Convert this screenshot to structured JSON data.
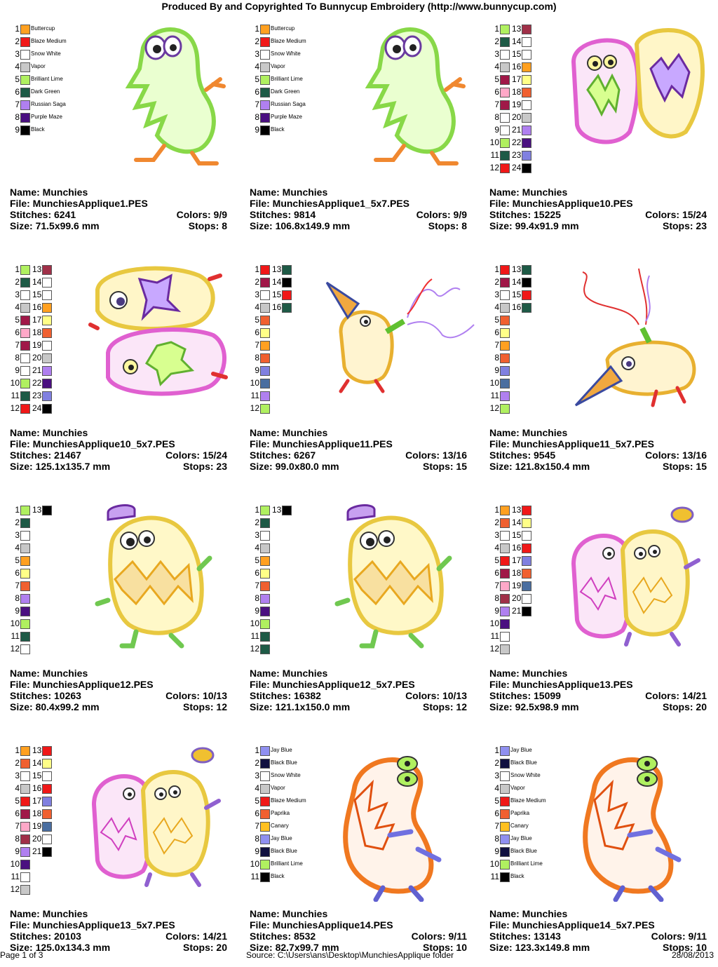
{
  "header": "Produced By and Copyrighted To Bunnycup Embroidery (http://www.bunnycup.com)",
  "footer": {
    "page": "Page 1 of 3",
    "source": "Source:  C:\\Users\\ans\\Desktop\\MunchiesApplique folder",
    "date": "28/08/2013"
  },
  "labels": {
    "name": "Name: ",
    "file": "File: ",
    "stitches": "Stitches: ",
    "size": "Size: ",
    "colors": "Colors: ",
    "stops": "Stops: "
  },
  "designs": [
    {
      "name": "Munchies",
      "file": "MunchiesApplique1.PES",
      "stitches": "6241",
      "colors": "9/9",
      "size": "71.5x99.6 mm",
      "stops": "8",
      "art": "ghost-green",
      "swatches": [
        {
          "n": "1",
          "c": "#FFA020",
          "label": "Buttercup"
        },
        {
          "n": "2",
          "c": "#F01818",
          "label": "Blaze Medium"
        },
        {
          "n": "3",
          "c": "#FFFFFF",
          "label": "Snow White"
        },
        {
          "n": "4",
          "c": "#C8C8C8",
          "label": "Vapor"
        },
        {
          "n": "5",
          "c": "#B0F060",
          "label": "Brilliant Lime"
        },
        {
          "n": "6",
          "c": "#1E5A46",
          "label": "Dark Green"
        },
        {
          "n": "7",
          "c": "#B080F0",
          "label": "Russian Saga"
        },
        {
          "n": "8",
          "c": "#4A1080",
          "label": "Purple Maze"
        },
        {
          "n": "9",
          "c": "#000000",
          "label": "Black"
        }
      ]
    },
    {
      "name": "Munchies",
      "file": "MunchiesApplique1_5x7.PES",
      "stitches": "9814",
      "colors": "9/9",
      "size": "106.8x149.9 mm",
      "stops": "8",
      "art": "ghost-green",
      "swatches": [
        {
          "n": "1",
          "c": "#FFA020",
          "label": "Buttercup"
        },
        {
          "n": "2",
          "c": "#F01818",
          "label": "Blaze Medium"
        },
        {
          "n": "3",
          "c": "#FFFFFF",
          "label": "Snow White"
        },
        {
          "n": "4",
          "c": "#C8C8C8",
          "label": "Vapor"
        },
        {
          "n": "5",
          "c": "#B0F060",
          "label": "Brilliant Lime"
        },
        {
          "n": "6",
          "c": "#1E5A46",
          "label": "Dark Green"
        },
        {
          "n": "7",
          "c": "#B080F0",
          "label": "Russian Saga"
        },
        {
          "n": "8",
          "c": "#4A1080",
          "label": "Purple Maze"
        },
        {
          "n": "9",
          "c": "#000000",
          "label": "Black"
        }
      ]
    },
    {
      "name": "Munchies",
      "file": "MunchiesApplique10.PES",
      "stitches": "15225",
      "colors": "15/24",
      "size": "99.4x91.9 mm",
      "stops": "23",
      "art": "pair-pink-yellow",
      "swatches": [
        {
          "n": "1",
          "c": "#B0F060"
        },
        {
          "n": "2",
          "c": "#1E5A46"
        },
        {
          "n": "3",
          "c": "#FFFFFF"
        },
        {
          "n": "4",
          "c": "#C8C8C8"
        },
        {
          "n": "5",
          "c": "#A01848"
        },
        {
          "n": "6",
          "c": "#FFA8C8"
        },
        {
          "n": "7",
          "c": "#A01848"
        },
        {
          "n": "8",
          "c": "#FFFFFF"
        },
        {
          "n": "9",
          "c": "#FFFFFF"
        },
        {
          "n": "10",
          "c": "#B0F060"
        },
        {
          "n": "11",
          "c": "#1E5A46"
        },
        {
          "n": "12",
          "c": "#F01818"
        },
        {
          "n": "13",
          "c": "#A03048"
        },
        {
          "n": "14",
          "c": "#FFFFFF"
        },
        {
          "n": "15",
          "c": "#FFFFFF"
        },
        {
          "n": "16",
          "c": "#FFA020"
        },
        {
          "n": "17",
          "c": "#FFFF88"
        },
        {
          "n": "18",
          "c": "#F06030"
        },
        {
          "n": "19",
          "c": "#FFFFFF"
        },
        {
          "n": "20",
          "c": "#C8C8C8"
        },
        {
          "n": "21",
          "c": "#B080F0"
        },
        {
          "n": "22",
          "c": "#4A1080"
        },
        {
          "n": "23",
          "c": "#8080E0"
        },
        {
          "n": "24",
          "c": "#000000"
        }
      ]
    },
    {
      "name": "Munchies",
      "file": "MunchiesApplique10_5x7.PES",
      "stitches": "21467",
      "colors": "15/24",
      "size": "125.1x135.7 mm",
      "stops": "23",
      "art": "pair-stacked",
      "swatches": [
        {
          "n": "1",
          "c": "#B0F060"
        },
        {
          "n": "2",
          "c": "#1E5A46"
        },
        {
          "n": "3",
          "c": "#FFFFFF"
        },
        {
          "n": "4",
          "c": "#C8C8C8"
        },
        {
          "n": "5",
          "c": "#A01848"
        },
        {
          "n": "6",
          "c": "#FFA8C8"
        },
        {
          "n": "7",
          "c": "#A01848"
        },
        {
          "n": "8",
          "c": "#FFFFFF"
        },
        {
          "n": "9",
          "c": "#FFFFFF"
        },
        {
          "n": "10",
          "c": "#B0F060"
        },
        {
          "n": "11",
          "c": "#1E5A46"
        },
        {
          "n": "12",
          "c": "#F01818"
        },
        {
          "n": "13",
          "c": "#A03048"
        },
        {
          "n": "14",
          "c": "#FFFFFF"
        },
        {
          "n": "15",
          "c": "#FFFFFF"
        },
        {
          "n": "16",
          "c": "#FFA020"
        },
        {
          "n": "17",
          "c": "#FFFF88"
        },
        {
          "n": "18",
          "c": "#F06030"
        },
        {
          "n": "19",
          "c": "#FFFFFF"
        },
        {
          "n": "20",
          "c": "#C8C8C8"
        },
        {
          "n": "21",
          "c": "#B080F0"
        },
        {
          "n": "22",
          "c": "#4A1080"
        },
        {
          "n": "23",
          "c": "#8080E0"
        },
        {
          "n": "24",
          "c": "#000000"
        }
      ]
    },
    {
      "name": "Munchies",
      "file": "MunchiesApplique11.PES",
      "stitches": "6267",
      "colors": "13/16",
      "size": "99.0x80.0 mm",
      "stops": "15",
      "art": "party",
      "swatches": [
        {
          "n": "1",
          "c": "#F01818"
        },
        {
          "n": "2",
          "c": "#A01848"
        },
        {
          "n": "3",
          "c": "#FFFFFF"
        },
        {
          "n": "4",
          "c": "#C8C8C8"
        },
        {
          "n": "5",
          "c": "#F06030"
        },
        {
          "n": "6",
          "c": "#FFFF88"
        },
        {
          "n": "7",
          "c": "#FFA020"
        },
        {
          "n": "8",
          "c": "#F06030"
        },
        {
          "n": "9",
          "c": "#8080E0"
        },
        {
          "n": "10",
          "c": "#4A6EA0"
        },
        {
          "n": "11",
          "c": "#B080F0"
        },
        {
          "n": "12",
          "c": "#B0F060"
        },
        {
          "n": "13",
          "c": "#1E5A46"
        },
        {
          "n": "14",
          "c": "#000000"
        },
        {
          "n": "15",
          "c": "#F01818"
        },
        {
          "n": "16",
          "c": "#1E5A46"
        }
      ]
    },
    {
      "name": "Munchies",
      "file": "MunchiesApplique11_5x7.PES",
      "stitches": "9545",
      "colors": "13/16",
      "size": "121.8x150.4 mm",
      "stops": "15",
      "art": "party-lying",
      "swatches": [
        {
          "n": "1",
          "c": "#F01818"
        },
        {
          "n": "2",
          "c": "#A01848"
        },
        {
          "n": "3",
          "c": "#FFFFFF"
        },
        {
          "n": "4",
          "c": "#C8C8C8"
        },
        {
          "n": "5",
          "c": "#F06030"
        },
        {
          "n": "6",
          "c": "#FFFF88"
        },
        {
          "n": "7",
          "c": "#FFA020"
        },
        {
          "n": "8",
          "c": "#F06030"
        },
        {
          "n": "9",
          "c": "#8080E0"
        },
        {
          "n": "10",
          "c": "#4A6EA0"
        },
        {
          "n": "11",
          "c": "#B080F0"
        },
        {
          "n": "12",
          "c": "#B0F060"
        },
        {
          "n": "13",
          "c": "#1E5A46"
        },
        {
          "n": "14",
          "c": "#000000"
        },
        {
          "n": "15",
          "c": "#F01818"
        },
        {
          "n": "16",
          "c": "#1E5A46"
        }
      ]
    },
    {
      "name": "Munchies",
      "file": "MunchiesApplique12.PES",
      "stitches": "10263",
      "colors": "10/13",
      "size": "80.4x99.2 mm",
      "stops": "12",
      "art": "yellow-hat",
      "swatches": [
        {
          "n": "1",
          "c": "#B0F060"
        },
        {
          "n": "2",
          "c": "#1E5A46"
        },
        {
          "n": "3",
          "c": "#FFFFFF"
        },
        {
          "n": "4",
          "c": "#C8C8C8"
        },
        {
          "n": "5",
          "c": "#FFA020"
        },
        {
          "n": "6",
          "c": "#FFFF88"
        },
        {
          "n": "7",
          "c": "#F06030"
        },
        {
          "n": "8",
          "c": "#B080F0"
        },
        {
          "n": "9",
          "c": "#4A1080"
        },
        {
          "n": "10",
          "c": "#B0F060"
        },
        {
          "n": "11",
          "c": "#1E5A46"
        },
        {
          "n": "12",
          "c": "#FFFFFF"
        },
        {
          "n": "13",
          "c": "#000000"
        }
      ]
    },
    {
      "name": "Munchies",
      "file": "MunchiesApplique12_5x7.PES",
      "stitches": "16382",
      "colors": "10/13",
      "size": "121.1x150.0 mm",
      "stops": "12",
      "art": "yellow-hat",
      "swatches": [
        {
          "n": "1",
          "c": "#B0F060"
        },
        {
          "n": "2",
          "c": "#1E5A46"
        },
        {
          "n": "3",
          "c": "#FFFFFF"
        },
        {
          "n": "4",
          "c": "#C8C8C8"
        },
        {
          "n": "5",
          "c": "#FFA020"
        },
        {
          "n": "6",
          "c": "#FFFF88"
        },
        {
          "n": "7",
          "c": "#F06030"
        },
        {
          "n": "8",
          "c": "#B080F0"
        },
        {
          "n": "9",
          "c": "#4A1080"
        },
        {
          "n": "10",
          "c": "#B0F060"
        },
        {
          "n": "11",
          "c": "#1E5A46"
        },
        {
          "n": "12",
          "c": "#1E5A46"
        },
        {
          "n": "13",
          "c": "#000000"
        }
      ]
    },
    {
      "name": "Munchies",
      "file": "MunchiesApplique13.PES",
      "stitches": "15099",
      "colors": "14/21",
      "size": "92.5x98.9 mm",
      "stops": "20",
      "art": "hug",
      "swatches": [
        {
          "n": "1",
          "c": "#FFA020"
        },
        {
          "n": "2",
          "c": "#F06030"
        },
        {
          "n": "3",
          "c": "#FFFFFF"
        },
        {
          "n": "4",
          "c": "#C8C8C8"
        },
        {
          "n": "5",
          "c": "#F01818"
        },
        {
          "n": "6",
          "c": "#A01848"
        },
        {
          "n": "7",
          "c": "#FFA8C8"
        },
        {
          "n": "8",
          "c": "#A03048"
        },
        {
          "n": "9",
          "c": "#B080F0"
        },
        {
          "n": "10",
          "c": "#4A1080"
        },
        {
          "n": "11",
          "c": "#FFFFFF"
        },
        {
          "n": "12",
          "c": "#C8C8C8"
        },
        {
          "n": "13",
          "c": "#F01818"
        },
        {
          "n": "14",
          "c": "#FFFF88"
        },
        {
          "n": "15",
          "c": "#FFFFFF"
        },
        {
          "n": "16",
          "c": "#F01818"
        },
        {
          "n": "17",
          "c": "#8080E0"
        },
        {
          "n": "18",
          "c": "#F06030"
        },
        {
          "n": "19",
          "c": "#4A6EA0"
        },
        {
          "n": "20",
          "c": "#FFFFFF"
        },
        {
          "n": "21",
          "c": "#000000"
        }
      ]
    },
    {
      "name": "Munchies",
      "file": "MunchiesApplique13_5x7.PES",
      "stitches": "20103",
      "colors": "14/21",
      "size": "125.0x134.3 mm",
      "stops": "20",
      "art": "hug",
      "swatches": [
        {
          "n": "1",
          "c": "#FFA020"
        },
        {
          "n": "2",
          "c": "#F06030"
        },
        {
          "n": "3",
          "c": "#FFFFFF"
        },
        {
          "n": "4",
          "c": "#C8C8C8"
        },
        {
          "n": "5",
          "c": "#F01818"
        },
        {
          "n": "6",
          "c": "#A01848"
        },
        {
          "n": "7",
          "c": "#FFA8C8"
        },
        {
          "n": "8",
          "c": "#A03048"
        },
        {
          "n": "9",
          "c": "#B080F0"
        },
        {
          "n": "10",
          "c": "#4A1080"
        },
        {
          "n": "11",
          "c": "#FFFFFF"
        },
        {
          "n": "12",
          "c": "#C8C8C8"
        },
        {
          "n": "13",
          "c": "#F01818"
        },
        {
          "n": "14",
          "c": "#FFFF88"
        },
        {
          "n": "15",
          "c": "#FFFFFF"
        },
        {
          "n": "16",
          "c": "#F01818"
        },
        {
          "n": "17",
          "c": "#8080E0"
        },
        {
          "n": "18",
          "c": "#F06030"
        },
        {
          "n": "19",
          "c": "#4A6EA0"
        },
        {
          "n": "20",
          "c": "#FFFFFF"
        },
        {
          "n": "21",
          "c": "#000000"
        }
      ]
    },
    {
      "name": "Munchies",
      "file": "MunchiesApplique14.PES",
      "stitches": "8532",
      "colors": "9/11",
      "size": "82.7x99.7 mm",
      "stops": "10",
      "art": "orange",
      "swatches": [
        {
          "n": "1",
          "c": "#9090F0",
          "label": "Jay Blue"
        },
        {
          "n": "2",
          "c": "#101040",
          "label": "Black Blue"
        },
        {
          "n": "3",
          "c": "#FFFFFF",
          "label": "Snow White"
        },
        {
          "n": "4",
          "c": "#C8C8C8",
          "label": "Vapor"
        },
        {
          "n": "5",
          "c": "#F01818",
          "label": "Blaze Medium"
        },
        {
          "n": "6",
          "c": "#F06030",
          "label": "Paprika"
        },
        {
          "n": "7",
          "c": "#FFC020",
          "label": "Canary"
        },
        {
          "n": "8",
          "c": "#9090F0",
          "label": "Jay Blue"
        },
        {
          "n": "9",
          "c": "#101040",
          "label": "Black Blue"
        },
        {
          "n": "10",
          "c": "#B0F060",
          "label": "Brilliant Lime"
        },
        {
          "n": "11",
          "c": "#000000",
          "label": "Black"
        }
      ]
    },
    {
      "name": "Munchies",
      "file": "MunchiesApplique14_5x7.PES",
      "stitches": "13143",
      "colors": "9/11",
      "size": "123.3x149.8 mm",
      "stops": "10",
      "art": "orange",
      "swatches": [
        {
          "n": "1",
          "c": "#9090F0",
          "label": "Jay Blue"
        },
        {
          "n": "2",
          "c": "#101040",
          "label": "Black Blue"
        },
        {
          "n": "3",
          "c": "#FFFFFF",
          "label": "Snow White"
        },
        {
          "n": "4",
          "c": "#C8C8C8",
          "label": "Vapor"
        },
        {
          "n": "5",
          "c": "#F01818",
          "label": "Blaze Medium"
        },
        {
          "n": "6",
          "c": "#F06030",
          "label": "Paprika"
        },
        {
          "n": "7",
          "c": "#FFC020",
          "label": "Canary"
        },
        {
          "n": "8",
          "c": "#9090F0",
          "label": "Jay Blue"
        },
        {
          "n": "9",
          "c": "#101040",
          "label": "Black Blue"
        },
        {
          "n": "10",
          "c": "#B0F060",
          "label": "Brilliant Lime"
        },
        {
          "n": "11",
          "c": "#000000",
          "label": "Black"
        }
      ]
    }
  ]
}
